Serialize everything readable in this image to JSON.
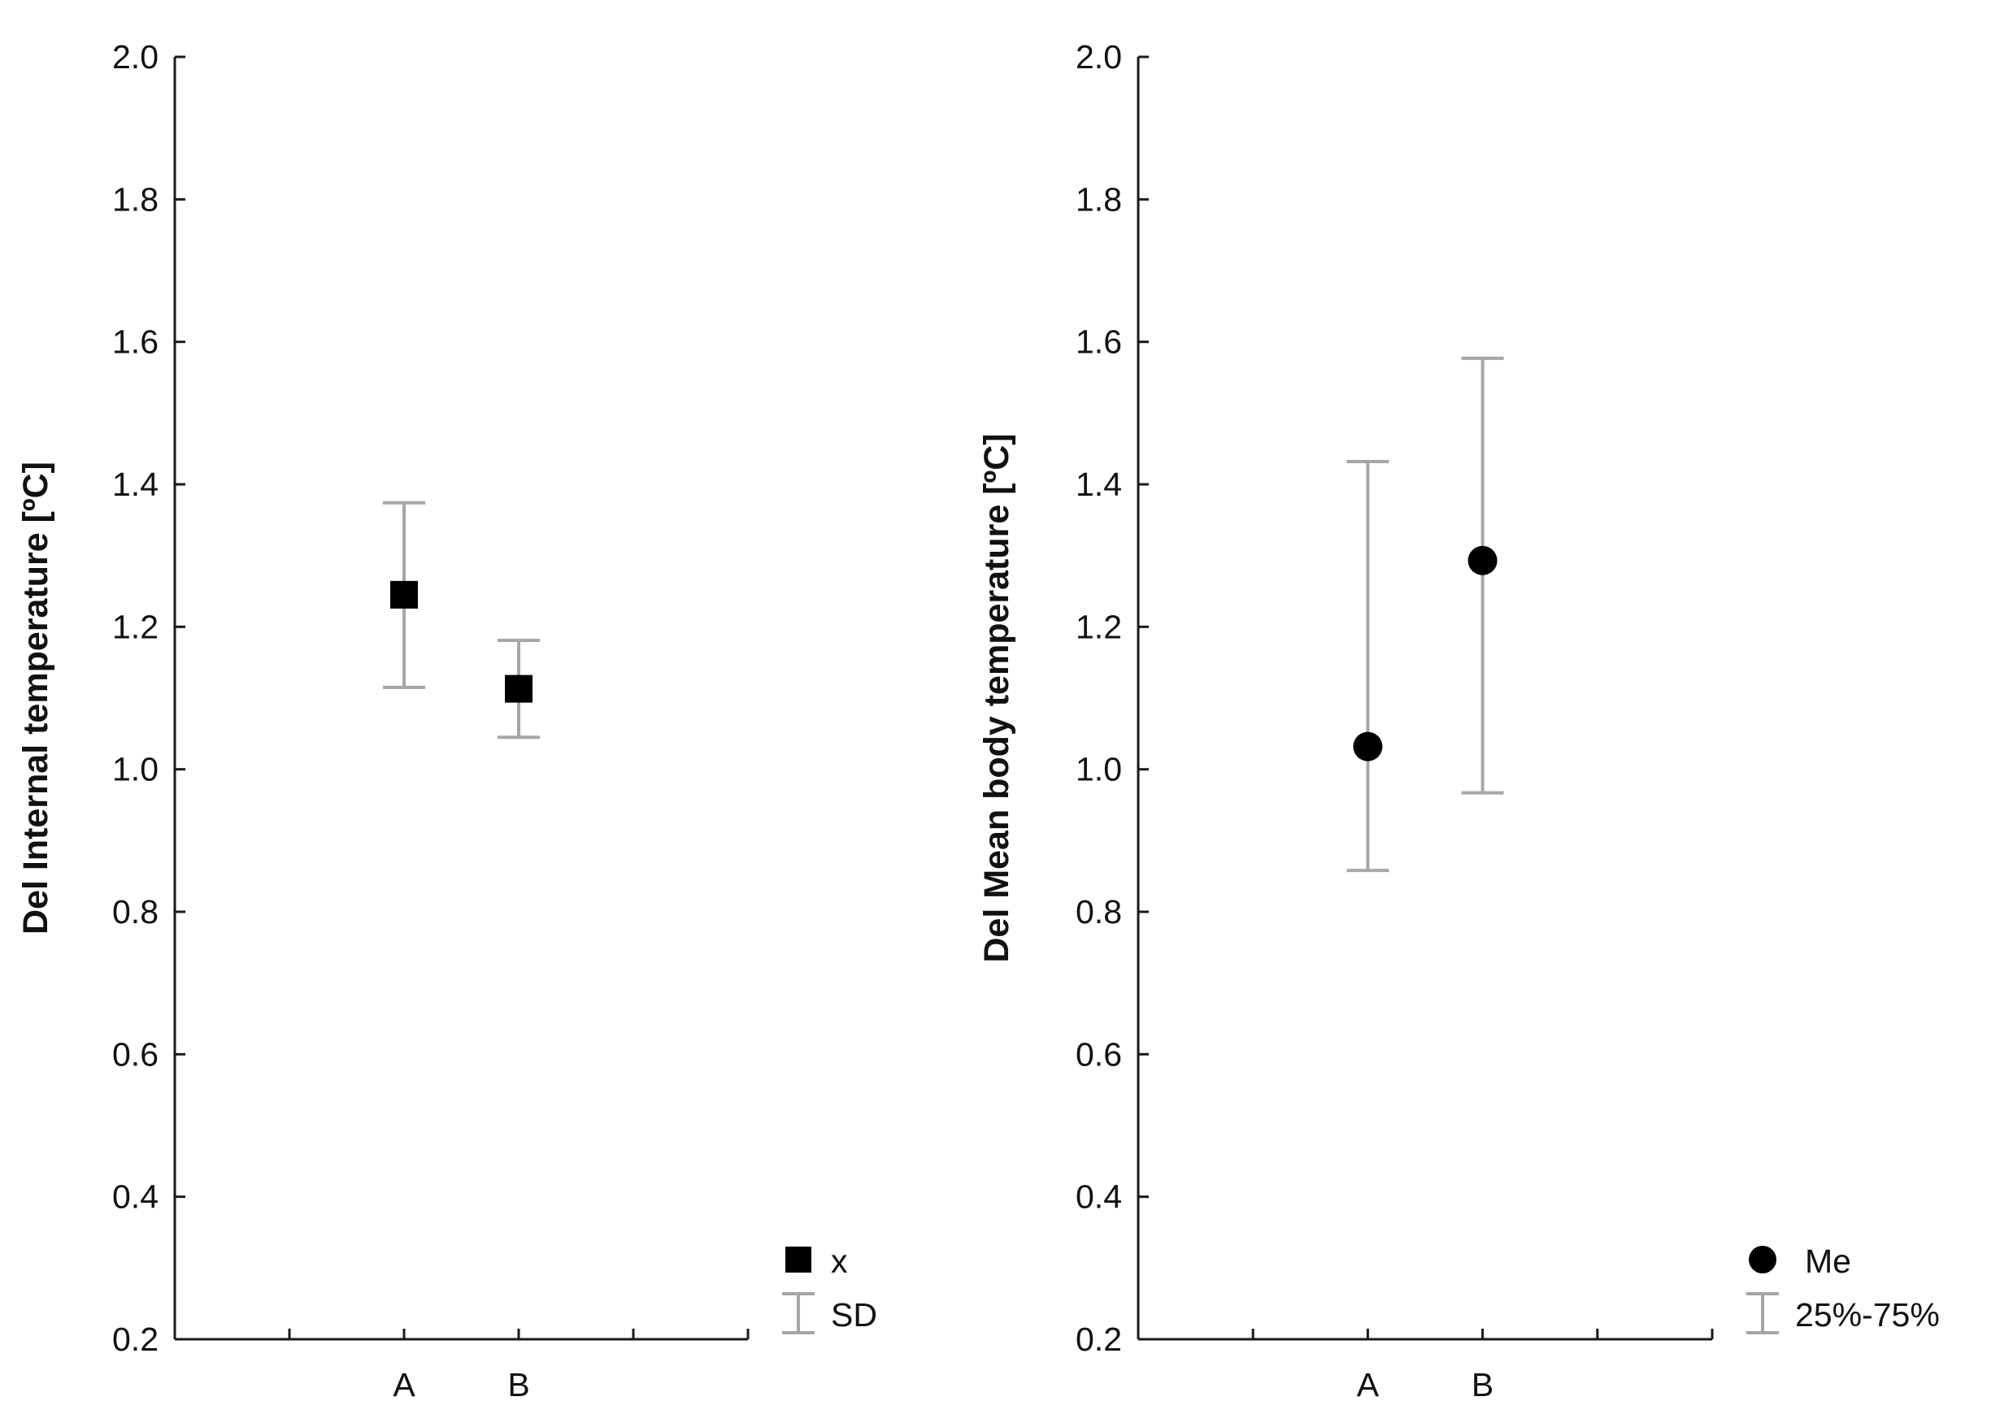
{
  "colors": {
    "axis": "#1a1a1a",
    "marker": "#000000",
    "error_bar": "#a6a6a6",
    "background": "#ffffff"
  },
  "chart_data": [
    {
      "type": "scatter",
      "ylabel": "Del Internal temperature [ºC]",
      "xlabel": "",
      "categories": [
        "A",
        "B"
      ],
      "x_tick_count": 6,
      "category_positions": [
        2,
        3
      ],
      "ylim": [
        0.2,
        2.0
      ],
      "yticks": [
        "0.2",
        "0.4",
        "0.6",
        "0.8",
        "1.0",
        "1.2",
        "1.4",
        "1.6",
        "1.8",
        "2.0"
      ],
      "marker": "square",
      "series": [
        {
          "name": "x",
          "values": [
            1.245,
            1.113
          ],
          "lower": [
            1.115,
            1.045
          ],
          "upper": [
            1.374,
            1.181
          ]
        }
      ],
      "legend": {
        "position": "bottom-right",
        "marker_label": "x",
        "bar_label": "SD"
      }
    },
    {
      "type": "scatter",
      "ylabel": "Del Mean body temperature [ºC]",
      "xlabel": "",
      "categories": [
        "A",
        "B"
      ],
      "x_tick_count": 6,
      "category_positions": [
        2,
        3
      ],
      "ylim": [
        0.2,
        2.0
      ],
      "yticks": [
        "0.2",
        "0.4",
        "0.6",
        "0.8",
        "1.0",
        "1.2",
        "1.4",
        "1.6",
        "1.8",
        "2.0"
      ],
      "marker": "circle",
      "series": [
        {
          "name": "Me",
          "values": [
            1.032,
            1.293
          ],
          "lower": [
            0.858,
            0.967
          ],
          "upper": [
            1.432,
            1.577
          ]
        }
      ],
      "legend": {
        "position": "bottom-right",
        "marker_label": "Me",
        "bar_label": "25%-75%"
      }
    }
  ]
}
